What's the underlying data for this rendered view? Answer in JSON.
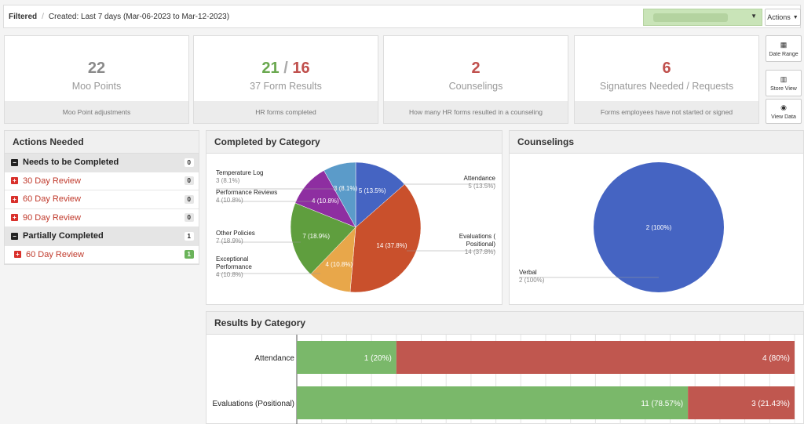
{
  "filter": {
    "label": "Filtered",
    "created": "Created: Last 7 days (Mar-06-2023 to Mar-12-2023)"
  },
  "actions_label": "Actions",
  "stats": [
    {
      "value": "22",
      "label": "Moo Points",
      "footer": "Moo Point adjustments"
    },
    {
      "value_a": "21",
      "slash": "/",
      "value_b": "16",
      "label": "37 Form Results",
      "footer": "HR forms completed"
    },
    {
      "value": "2",
      "label": "Counselings",
      "footer": "How many HR forms resulted in a counseling"
    },
    {
      "value": "6",
      "label": "Signatures Needed / Requests",
      "footer": "Forms employees have not started or signed"
    }
  ],
  "side_buttons": [
    {
      "label": "Date Range",
      "icon": "calendar-icon"
    },
    {
      "label": "Store View",
      "icon": "building-icon"
    },
    {
      "label": "View Data",
      "icon": "eye-icon"
    }
  ],
  "actions_needed": {
    "title": "Actions Needed",
    "rows": [
      {
        "type": "group",
        "label": "Needs to be Completed",
        "count": "0"
      },
      {
        "type": "item",
        "label": "30 Day Review",
        "count": "0"
      },
      {
        "type": "item",
        "label": "60 Day Review",
        "count": "0"
      },
      {
        "type": "item",
        "label": "90 Day Review",
        "count": "0"
      },
      {
        "type": "group",
        "label": "Partially Completed",
        "count": "1"
      },
      {
        "type": "item",
        "label": "60 Day Review",
        "count": "1",
        "highlight": true
      }
    ]
  },
  "completed_by_category": {
    "title": "Completed by Category",
    "slices": [
      {
        "name": "Attendance",
        "value": 5,
        "label": "5 (13.5%)",
        "color": "#4564c2"
      },
      {
        "name": "Evaluations ( Positional)",
        "value": 14,
        "label": "14 (37.8%)",
        "color": "#c9502c"
      },
      {
        "name": "Exceptional Performance",
        "value": 4,
        "label": "4 (10.8%)",
        "color": "#e8a74a"
      },
      {
        "name": "Other Policies",
        "value": 7,
        "label": "7 (18.9%)",
        "color": "#5f9e3e"
      },
      {
        "name": "Performance Reviews",
        "value": 4,
        "label": "4 (10.8%)",
        "color": "#8e2ea1"
      },
      {
        "name": "Temperature Log",
        "value": 3,
        "label": "3 (8.1%)",
        "color": "#5b9bc9"
      }
    ]
  },
  "counselings": {
    "title": "Counselings",
    "slices": [
      {
        "name": "Verbal",
        "value": 2,
        "label": "2 (100%)",
        "color": "#4564c2"
      }
    ]
  },
  "results_by_category": {
    "title": "Results by Category",
    "colors": {
      "pass": "#7ab86a",
      "fail": "#c0574f"
    },
    "rows": [
      {
        "category": "Attendance",
        "pass": 1,
        "pass_label": "1 (20%)",
        "fail": 4,
        "fail_label": "4 (80%)"
      },
      {
        "category": "Evaluations (Positional)",
        "pass": 11,
        "pass_label": "11 (78.57%)",
        "fail": 3,
        "fail_label": "3 (21.43%)"
      }
    ]
  },
  "chart_data": [
    {
      "type": "pie",
      "title": "Completed by Category",
      "categories": [
        "Attendance",
        "Evaluations ( Positional)",
        "Exceptional Performance",
        "Other Policies",
        "Performance Reviews",
        "Temperature Log"
      ],
      "values": [
        5,
        14,
        4,
        7,
        4,
        3
      ]
    },
    {
      "type": "pie",
      "title": "Counselings",
      "categories": [
        "Verbal"
      ],
      "values": [
        2
      ]
    },
    {
      "type": "bar",
      "title": "Results by Category",
      "categories": [
        "Attendance",
        "Evaluations (Positional)"
      ],
      "series": [
        {
          "values": [
            1,
            11
          ]
        },
        {
          "values": [
            4,
            3
          ]
        }
      ]
    }
  ]
}
